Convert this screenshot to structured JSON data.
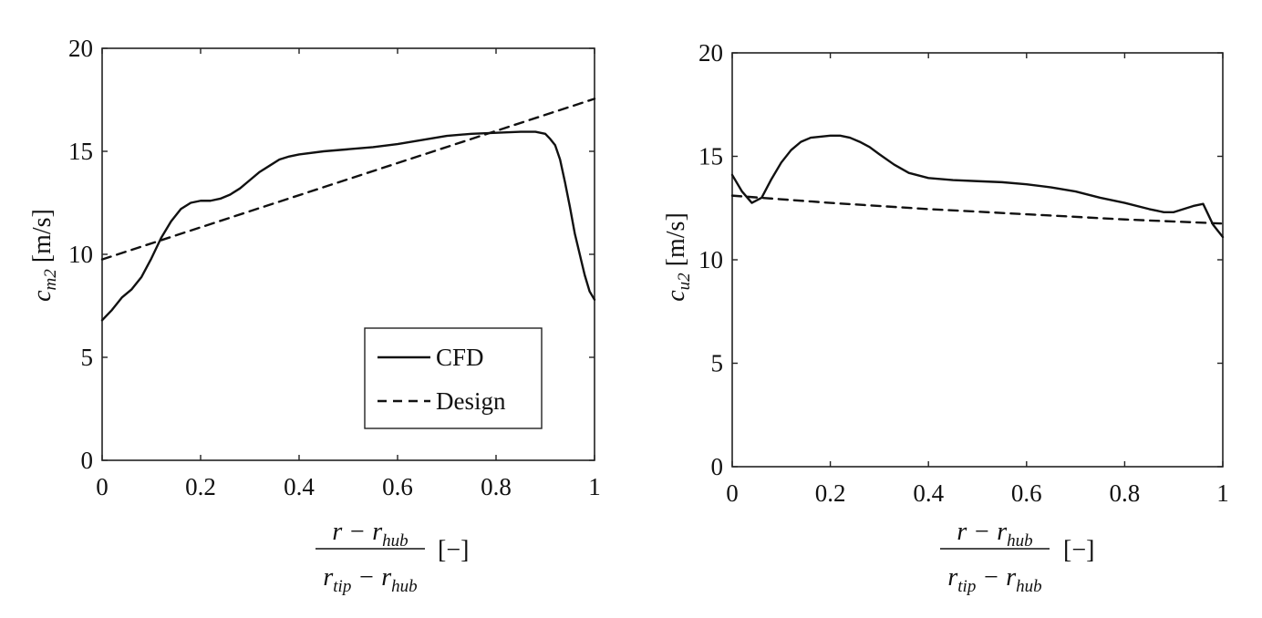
{
  "chart_data": [
    {
      "type": "line",
      "xlabel": {
        "numerator": {
          "main": "r − r",
          "sub": "hub"
        },
        "denominator": {
          "a_main": "r",
          "a_sub": "tip",
          "b_main": " − r",
          "b_sub": "hub"
        },
        "unit": "[−]"
      },
      "ylabel": {
        "main": "c",
        "sub": "m2",
        "unit": " [m/s]"
      },
      "xlim": [
        0,
        1
      ],
      "ylim": [
        0,
        20
      ],
      "x_ticks": [
        "0",
        "0.2",
        "0.4",
        "0.6",
        "0.8",
        "1"
      ],
      "y_ticks": [
        "0",
        "5",
        "10",
        "15",
        "20"
      ],
      "grid": false,
      "legend_position": "bottom-right",
      "series": [
        {
          "name": "CFD",
          "style": "solid",
          "color": "#111111",
          "x": [
            0,
            0.02,
            0.04,
            0.06,
            0.08,
            0.1,
            0.12,
            0.14,
            0.16,
            0.18,
            0.2,
            0.22,
            0.24,
            0.26,
            0.28,
            0.3,
            0.32,
            0.34,
            0.36,
            0.38,
            0.4,
            0.45,
            0.5,
            0.55,
            0.6,
            0.65,
            0.7,
            0.75,
            0.8,
            0.85,
            0.88,
            0.9,
            0.91,
            0.92,
            0.93,
            0.94,
            0.95,
            0.96,
            0.97,
            0.98,
            0.99,
            1.0
          ],
          "y": [
            6.8,
            7.3,
            7.9,
            8.3,
            8.9,
            9.8,
            10.8,
            11.6,
            12.2,
            12.5,
            12.6,
            12.6,
            12.7,
            12.9,
            13.2,
            13.6,
            14.0,
            14.3,
            14.6,
            14.75,
            14.85,
            15.0,
            15.1,
            15.2,
            15.35,
            15.55,
            15.75,
            15.85,
            15.9,
            15.95,
            15.95,
            15.85,
            15.6,
            15.3,
            14.6,
            13.5,
            12.3,
            11.0,
            10.0,
            9.0,
            8.2,
            7.8
          ]
        },
        {
          "name": "Design",
          "style": "dashed",
          "color": "#111111",
          "x": [
            0,
            1
          ],
          "y": [
            9.75,
            17.55
          ]
        }
      ]
    },
    {
      "type": "line",
      "xlabel": {
        "numerator": {
          "main": "r − r",
          "sub": "hub"
        },
        "denominator": {
          "a_main": "r",
          "a_sub": "tip",
          "b_main": " − r",
          "b_sub": "hub"
        },
        "unit": "[−]"
      },
      "ylabel": {
        "main": "c",
        "sub": "u2",
        "unit": " [m/s]"
      },
      "xlim": [
        0,
        1
      ],
      "ylim": [
        0,
        20
      ],
      "x_ticks": [
        "0",
        "0.2",
        "0.4",
        "0.6",
        "0.8",
        "1"
      ],
      "y_ticks": [
        "0",
        "5",
        "10",
        "15",
        "20"
      ],
      "grid": false,
      "series": [
        {
          "style": "solid",
          "color": "#111111",
          "x": [
            0,
            0.02,
            0.04,
            0.06,
            0.08,
            0.1,
            0.12,
            0.14,
            0.16,
            0.18,
            0.2,
            0.22,
            0.24,
            0.26,
            0.28,
            0.3,
            0.33,
            0.36,
            0.4,
            0.45,
            0.5,
            0.55,
            0.6,
            0.65,
            0.7,
            0.75,
            0.8,
            0.85,
            0.88,
            0.9,
            0.92,
            0.94,
            0.96,
            0.97,
            0.98,
            0.99,
            1.0
          ],
          "y": [
            14.1,
            13.3,
            12.75,
            13.0,
            13.9,
            14.7,
            15.3,
            15.7,
            15.9,
            15.95,
            16.0,
            16.0,
            15.9,
            15.7,
            15.45,
            15.1,
            14.6,
            14.2,
            13.95,
            13.85,
            13.8,
            13.75,
            13.65,
            13.5,
            13.3,
            13.0,
            12.75,
            12.45,
            12.3,
            12.3,
            12.45,
            12.6,
            12.7,
            12.2,
            11.7,
            11.4,
            11.1
          ]
        },
        {
          "style": "dashed",
          "color": "#111111",
          "x": [
            0,
            0.2,
            0.4,
            0.6,
            0.8,
            1.0
          ],
          "y": [
            13.1,
            12.75,
            12.45,
            12.2,
            11.95,
            11.75
          ]
        }
      ]
    }
  ]
}
